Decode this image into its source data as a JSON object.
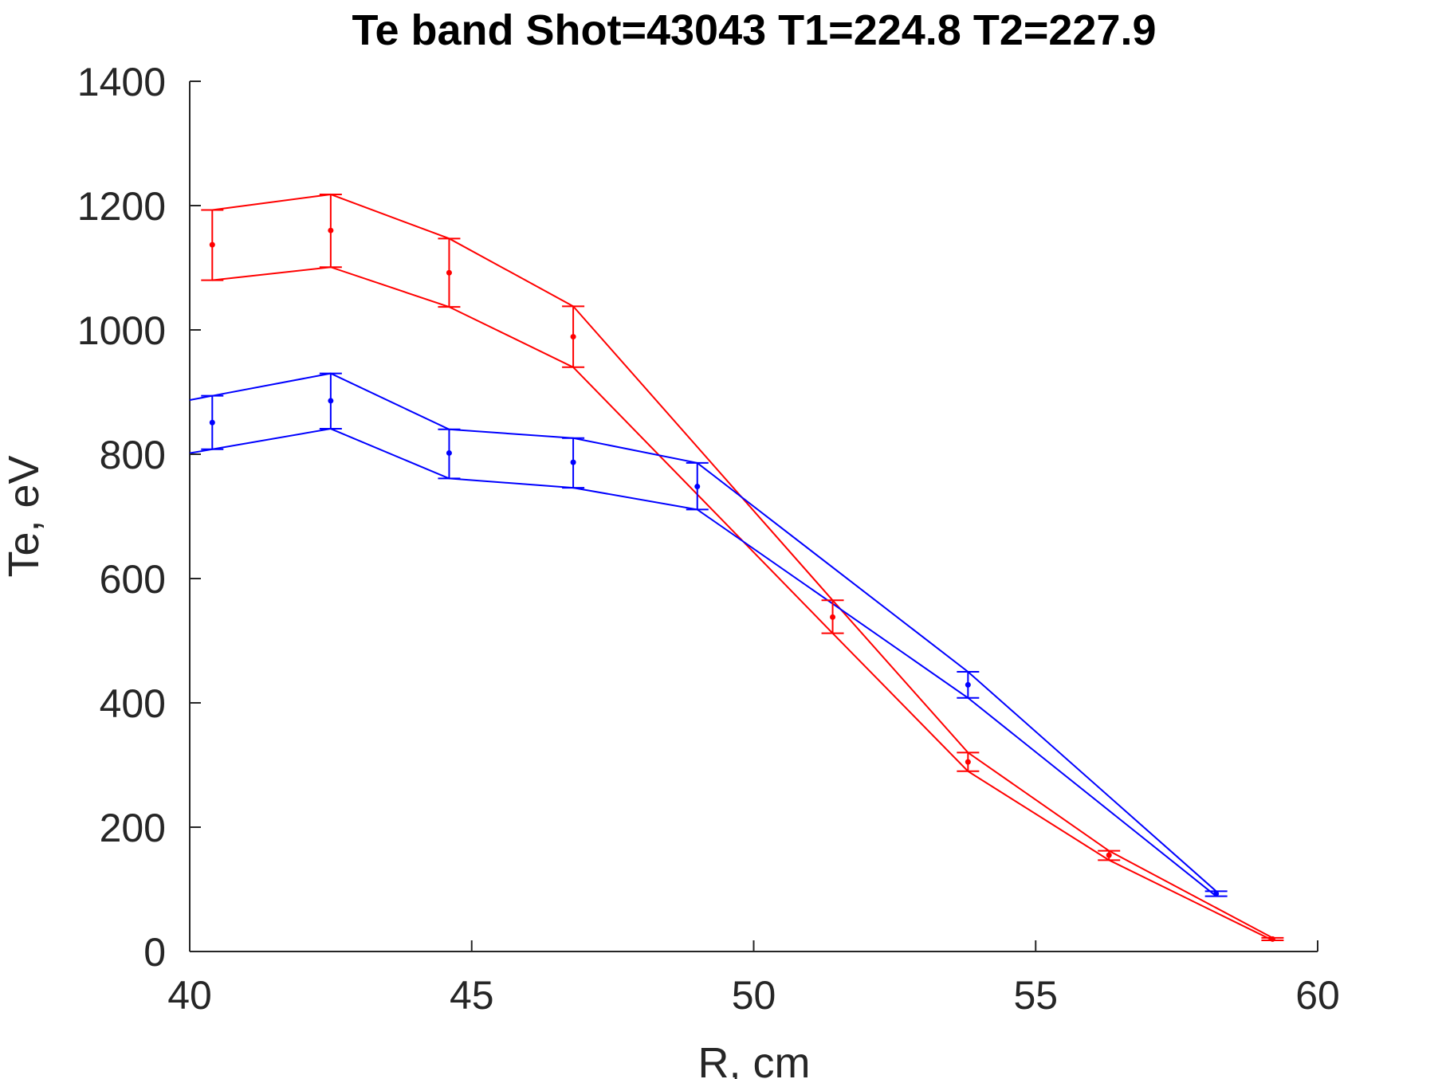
{
  "chart_data": {
    "type": "line",
    "title": "Te band Shot=43043 T1=224.8 T2=227.9",
    "xlabel": "R, cm",
    "ylabel": "Te, eV",
    "xlim": [
      40,
      60
    ],
    "ylim": [
      0,
      1400
    ],
    "xticks": [
      40,
      45,
      50,
      55,
      60
    ],
    "yticks": [
      0,
      200,
      400,
      600,
      800,
      1000,
      1200,
      1400
    ],
    "grid": false,
    "series": [
      {
        "color": "#ff0000",
        "x": [
          40.4,
          42.5,
          44.6,
          46.8,
          51.4,
          53.8,
          56.3,
          59.2
        ],
        "y": [
          1137,
          1160,
          1092,
          989,
          538,
          305,
          155,
          20
        ],
        "upper": [
          1193,
          1218,
          1147,
          1038,
          565,
          320,
          162,
          22
        ],
        "lower": [
          1080,
          1101,
          1037,
          940,
          512,
          290,
          147,
          18
        ]
      },
      {
        "color": "#0000ff",
        "x": [
          40.4,
          42.5,
          44.6,
          46.8,
          49.0,
          53.8,
          58.2
        ],
        "y": [
          851,
          886,
          802,
          787,
          748,
          429,
          93
        ],
        "upper": [
          894,
          930,
          840,
          826,
          786,
          450,
          97
        ],
        "lower": [
          808,
          841,
          761,
          746,
          711,
          408,
          89
        ]
      }
    ]
  }
}
